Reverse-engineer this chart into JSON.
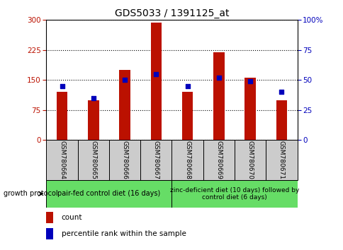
{
  "title": "GDS5033 / 1391125_at",
  "samples": [
    "GSM780664",
    "GSM780665",
    "GSM780666",
    "GSM780667",
    "GSM780668",
    "GSM780669",
    "GSM780670",
    "GSM780671"
  ],
  "counts": [
    120,
    100,
    175,
    293,
    120,
    220,
    155,
    100
  ],
  "percentiles": [
    45,
    35,
    50,
    55,
    45,
    52,
    49,
    40
  ],
  "ylim_left": [
    0,
    300
  ],
  "ylim_right": [
    0,
    100
  ],
  "yticks_left": [
    0,
    75,
    150,
    225,
    300
  ],
  "yticks_right": [
    0,
    25,
    50,
    75,
    100
  ],
  "bar_color": "#bb1100",
  "dot_color": "#0000bb",
  "group1_label": "pair-fed control diet (16 days)",
  "group2_label": "zinc-deficient diet (10 days) followed by\ncontrol diet (6 days)",
  "group1_indices": [
    0,
    1,
    2,
    3
  ],
  "group2_indices": [
    4,
    5,
    6,
    7
  ],
  "group_box_color": "#66dd66",
  "sample_box_color": "#cccccc",
  "legend_count_label": "count",
  "legend_pct_label": "percentile rank within the sample",
  "growth_protocol_label": "growth protocol",
  "title_fontsize": 10,
  "tick_fontsize": 7.5,
  "sample_fontsize": 6.5,
  "group_fontsize": 7,
  "legend_fontsize": 7.5,
  "bar_width": 0.35
}
